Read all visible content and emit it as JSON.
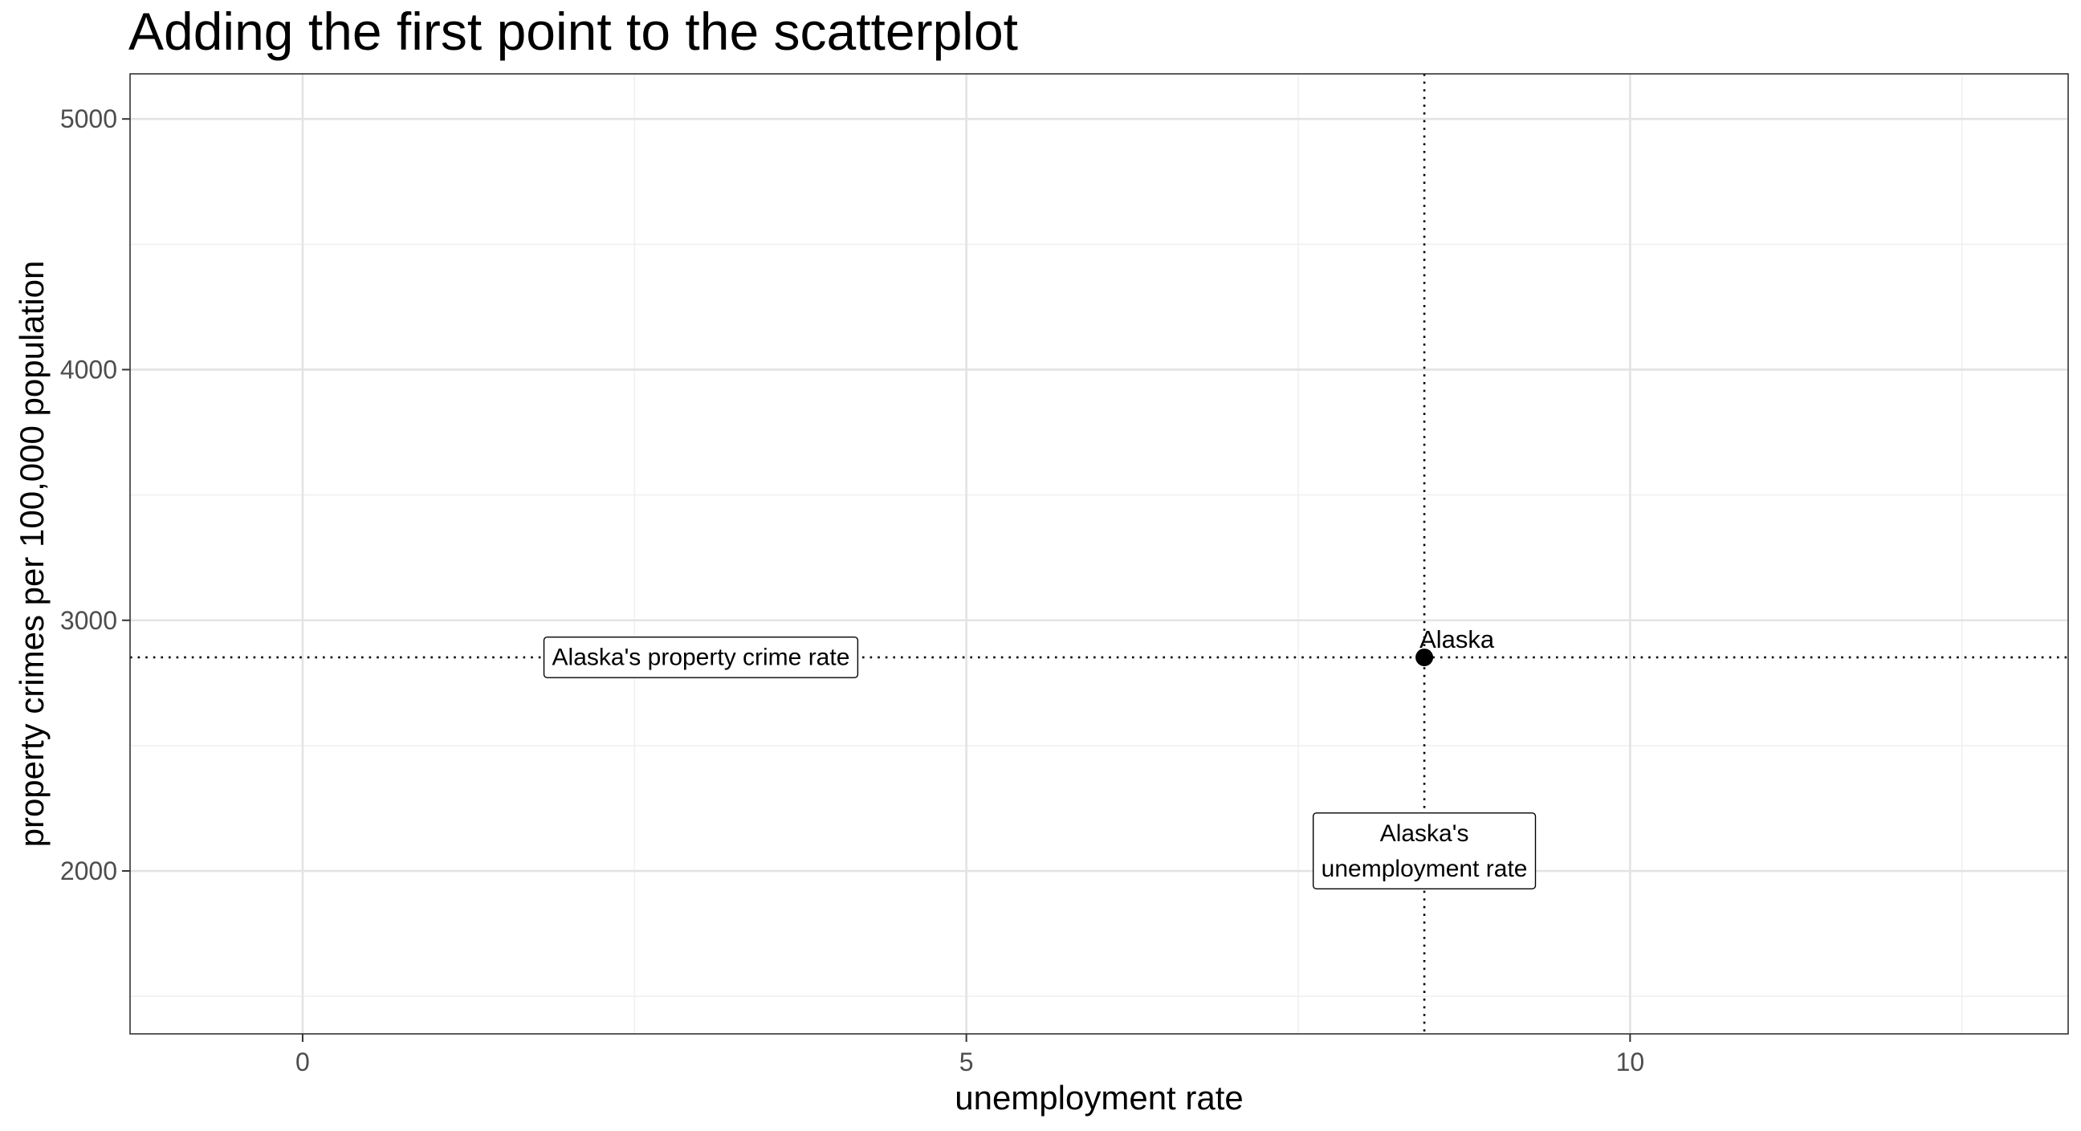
{
  "chart_data": {
    "type": "scatter",
    "title": "Adding the first point to the scatterplot",
    "xlabel": "unemployment rate",
    "ylabel": "property crimes per 100,000 population",
    "xlim": [
      -1.3,
      13.3
    ],
    "ylim": [
      1350,
      5180
    ],
    "x_ticks": [
      0,
      5,
      10
    ],
    "x_tick_labels": [
      "0",
      "5",
      "10"
    ],
    "x_minor_ticks": [
      2.5,
      7.5,
      12.5
    ],
    "y_ticks": [
      2000,
      3000,
      4000,
      5000
    ],
    "y_tick_labels": [
      "2000",
      "3000",
      "4000",
      "5000"
    ],
    "y_minor_ticks": [
      1500,
      2500,
      3500,
      4500
    ],
    "grid": true,
    "series": [
      {
        "points": [
          {
            "x": 8.45,
            "y": 2852,
            "label": "Alaska"
          }
        ]
      }
    ],
    "reference_lines": [
      {
        "orientation": "vertical",
        "x": 8.45,
        "style": "dotted"
      },
      {
        "orientation": "horizontal",
        "y": 2852,
        "style": "dotted"
      }
    ],
    "annotations": [
      {
        "lines": [
          "Alaska's property crime rate"
        ],
        "x": 3.0,
        "y": 2852
      },
      {
        "lines": [
          "Alaska's",
          "unemployment rate"
        ],
        "x": 8.45,
        "y": 2080
      }
    ]
  }
}
